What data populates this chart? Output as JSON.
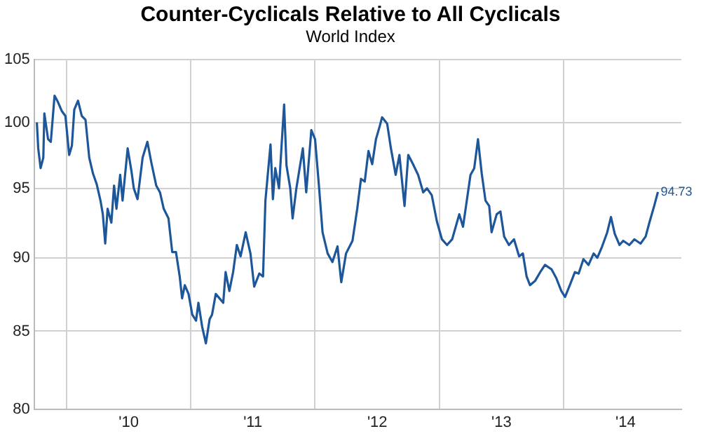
{
  "chart_data": {
    "type": "line",
    "title": "Counter-Cyclicals Relative to All Cyclicals",
    "subtitle": "World Index",
    "x": [
      "2009-10-05",
      "2009-10-09",
      "2009-10-16",
      "2009-10-24",
      "2009-10-27",
      "2009-11-07",
      "2009-11-15",
      "2009-11-26",
      "2009-12-06",
      "2009-12-17",
      "2009-12-28",
      "2010-01-08",
      "2010-01-16",
      "2010-01-23",
      "2010-02-03",
      "2010-02-14",
      "2010-02-25",
      "2010-03-08",
      "2010-03-19",
      "2010-03-30",
      "2010-04-10",
      "2010-04-17",
      "2010-04-24",
      "2010-05-01",
      "2010-05-12",
      "2010-05-20",
      "2010-05-27",
      "2010-06-07",
      "2010-06-14",
      "2010-06-29",
      "2010-07-10",
      "2010-07-17",
      "2010-07-28",
      "2010-08-12",
      "2010-08-26",
      "2010-09-06",
      "2010-09-21",
      "2010-10-02",
      "2010-10-13",
      "2010-10-27",
      "2010-11-07",
      "2010-11-18",
      "2010-11-29",
      "2010-12-06",
      "2010-12-14",
      "2010-12-25",
      "2011-01-05",
      "2011-01-16",
      "2011-01-23",
      "2011-02-03",
      "2011-02-14",
      "2011-02-25",
      "2011-03-04",
      "2011-03-15",
      "2011-03-26",
      "2011-04-06",
      "2011-04-13",
      "2011-04-24",
      "2011-05-05",
      "2011-05-16",
      "2011-05-27",
      "2011-06-11",
      "2011-06-25",
      "2011-07-06",
      "2011-07-21",
      "2011-08-01",
      "2011-08-08",
      "2011-08-23",
      "2011-08-30",
      "2011-09-06",
      "2011-09-17",
      "2011-09-24",
      "2011-10-02",
      "2011-10-09",
      "2011-10-20",
      "2011-10-27",
      "2011-11-07",
      "2011-11-26",
      "2011-12-06",
      "2011-12-21",
      "2012-01-01",
      "2012-01-12",
      "2012-01-23",
      "2012-02-07",
      "2012-02-21",
      "2012-03-07",
      "2012-03-18",
      "2012-04-01",
      "2012-04-20",
      "2012-05-04",
      "2012-05-15",
      "2012-05-26",
      "2012-06-06",
      "2012-06-17",
      "2012-06-28",
      "2012-07-09",
      "2012-07-16",
      "2012-07-31",
      "2012-08-11",
      "2012-08-25",
      "2012-09-05",
      "2012-09-20",
      "2012-10-01",
      "2012-10-15",
      "2012-10-30",
      "2012-11-14",
      "2012-11-25",
      "2012-12-09",
      "2012-12-24",
      "2013-01-08",
      "2013-01-23",
      "2013-02-07",
      "2013-02-28",
      "2013-03-11",
      "2013-04-02",
      "2013-04-13",
      "2013-04-24",
      "2013-05-05",
      "2013-05-16",
      "2013-05-27",
      "2013-06-03",
      "2013-06-18",
      "2013-06-29",
      "2013-07-10",
      "2013-07-24",
      "2013-08-08",
      "2013-08-23",
      "2013-09-03",
      "2013-09-14",
      "2013-09-24",
      "2013-10-09",
      "2013-10-24",
      "2013-11-07",
      "2013-11-26",
      "2013-12-10",
      "2013-12-25",
      "2014-01-05",
      "2014-01-19",
      "2014-02-03",
      "2014-02-14",
      "2014-02-28",
      "2014-03-15",
      "2014-03-30",
      "2014-04-10",
      "2014-04-24",
      "2014-05-09",
      "2014-05-20",
      "2014-05-31",
      "2014-06-14",
      "2014-06-25",
      "2014-07-13",
      "2014-07-28",
      "2014-08-15",
      "2014-08-30",
      "2014-09-10",
      "2014-09-24",
      "2014-10-05"
    ],
    "series": [
      {
        "color": "#1d5799",
        "values": [
          100.0,
          98,
          96.5,
          97.3,
          100.7,
          98.7,
          98.5,
          102.1,
          101.6,
          100.9,
          100.5,
          97.5,
          98.2,
          101,
          101.7,
          100.5,
          100.2,
          97.3,
          96.1,
          95.3,
          94.1,
          93.1,
          91.0,
          93.5,
          92.5,
          95.2,
          93.5,
          96,
          94.1,
          98,
          96.3,
          95,
          94.2,
          97.3,
          98.5,
          97,
          95.2,
          94.7,
          93.5,
          92.8,
          90.4,
          90.4,
          88.7,
          87.2,
          88.1,
          87.5,
          86.1,
          85.7,
          86.9,
          85.3,
          84.2,
          85.8,
          86.1,
          87.5,
          87.2,
          86.9,
          89,
          87.7,
          89,
          90.9,
          90.1,
          91.8,
          90.3,
          88,
          88.9,
          88.7,
          94.1,
          98.3,
          94.2,
          96.5,
          95,
          98,
          101.4,
          96.7,
          95,
          92.8,
          95,
          98,
          94.7,
          99.4,
          98.7,
          95.3,
          91.8,
          90.3,
          89.7,
          90.8,
          88.3,
          90.3,
          91.2,
          93.5,
          95.7,
          95.5,
          97.8,
          96.8,
          98.7,
          99.7,
          100.4,
          99.9,
          98,
          96,
          97.5,
          93.7,
          97.5,
          96.8,
          96,
          94.7,
          95,
          94.5,
          92.6,
          91.3,
          90.9,
          91.3,
          93.1,
          92.2,
          96,
          96.5,
          98.7,
          96.1,
          94.1,
          93.7,
          91.8,
          93.1,
          93.3,
          91.5,
          90.9,
          91.3,
          90.1,
          90.3,
          88.7,
          88.1,
          88.4,
          89,
          89.5,
          89.2,
          88.6,
          87.7,
          87.3,
          88.1,
          89,
          88.9,
          89.9,
          89.5,
          90.3,
          90,
          90.8,
          91.8,
          92.9,
          91.7,
          90.9,
          91.2,
          90.9,
          91.3,
          91,
          91.5,
          92.5,
          93.7,
          94.73
        ]
      }
    ],
    "annotations": [
      {
        "text": "94.73",
        "x": "2014-10-05",
        "y": 94.73
      }
    ],
    "xlim": [
      "2009-09-27",
      "2014-12-13"
    ],
    "xticks": [
      {
        "value": "2010-01-01",
        "label": null
      },
      {
        "value": "2010-07-02",
        "label": "'10"
      },
      {
        "value": "2011-01-01",
        "label": null
      },
      {
        "value": "2011-07-02",
        "label": "'11"
      },
      {
        "value": "2012-01-01",
        "label": null
      },
      {
        "value": "2012-07-02",
        "label": "'12"
      },
      {
        "value": "2013-01-01",
        "label": null
      },
      {
        "value": "2013-07-02",
        "label": "'13"
      },
      {
        "value": "2014-01-01",
        "label": null
      },
      {
        "value": "2014-07-02",
        "label": "'14"
      }
    ],
    "ylim": [
      80,
      105
    ],
    "yticks": [
      80,
      85,
      90,
      95,
      100,
      105
    ],
    "log": "y",
    "grid": true,
    "marker": "none",
    "line_style": "solid",
    "legend": false
  }
}
